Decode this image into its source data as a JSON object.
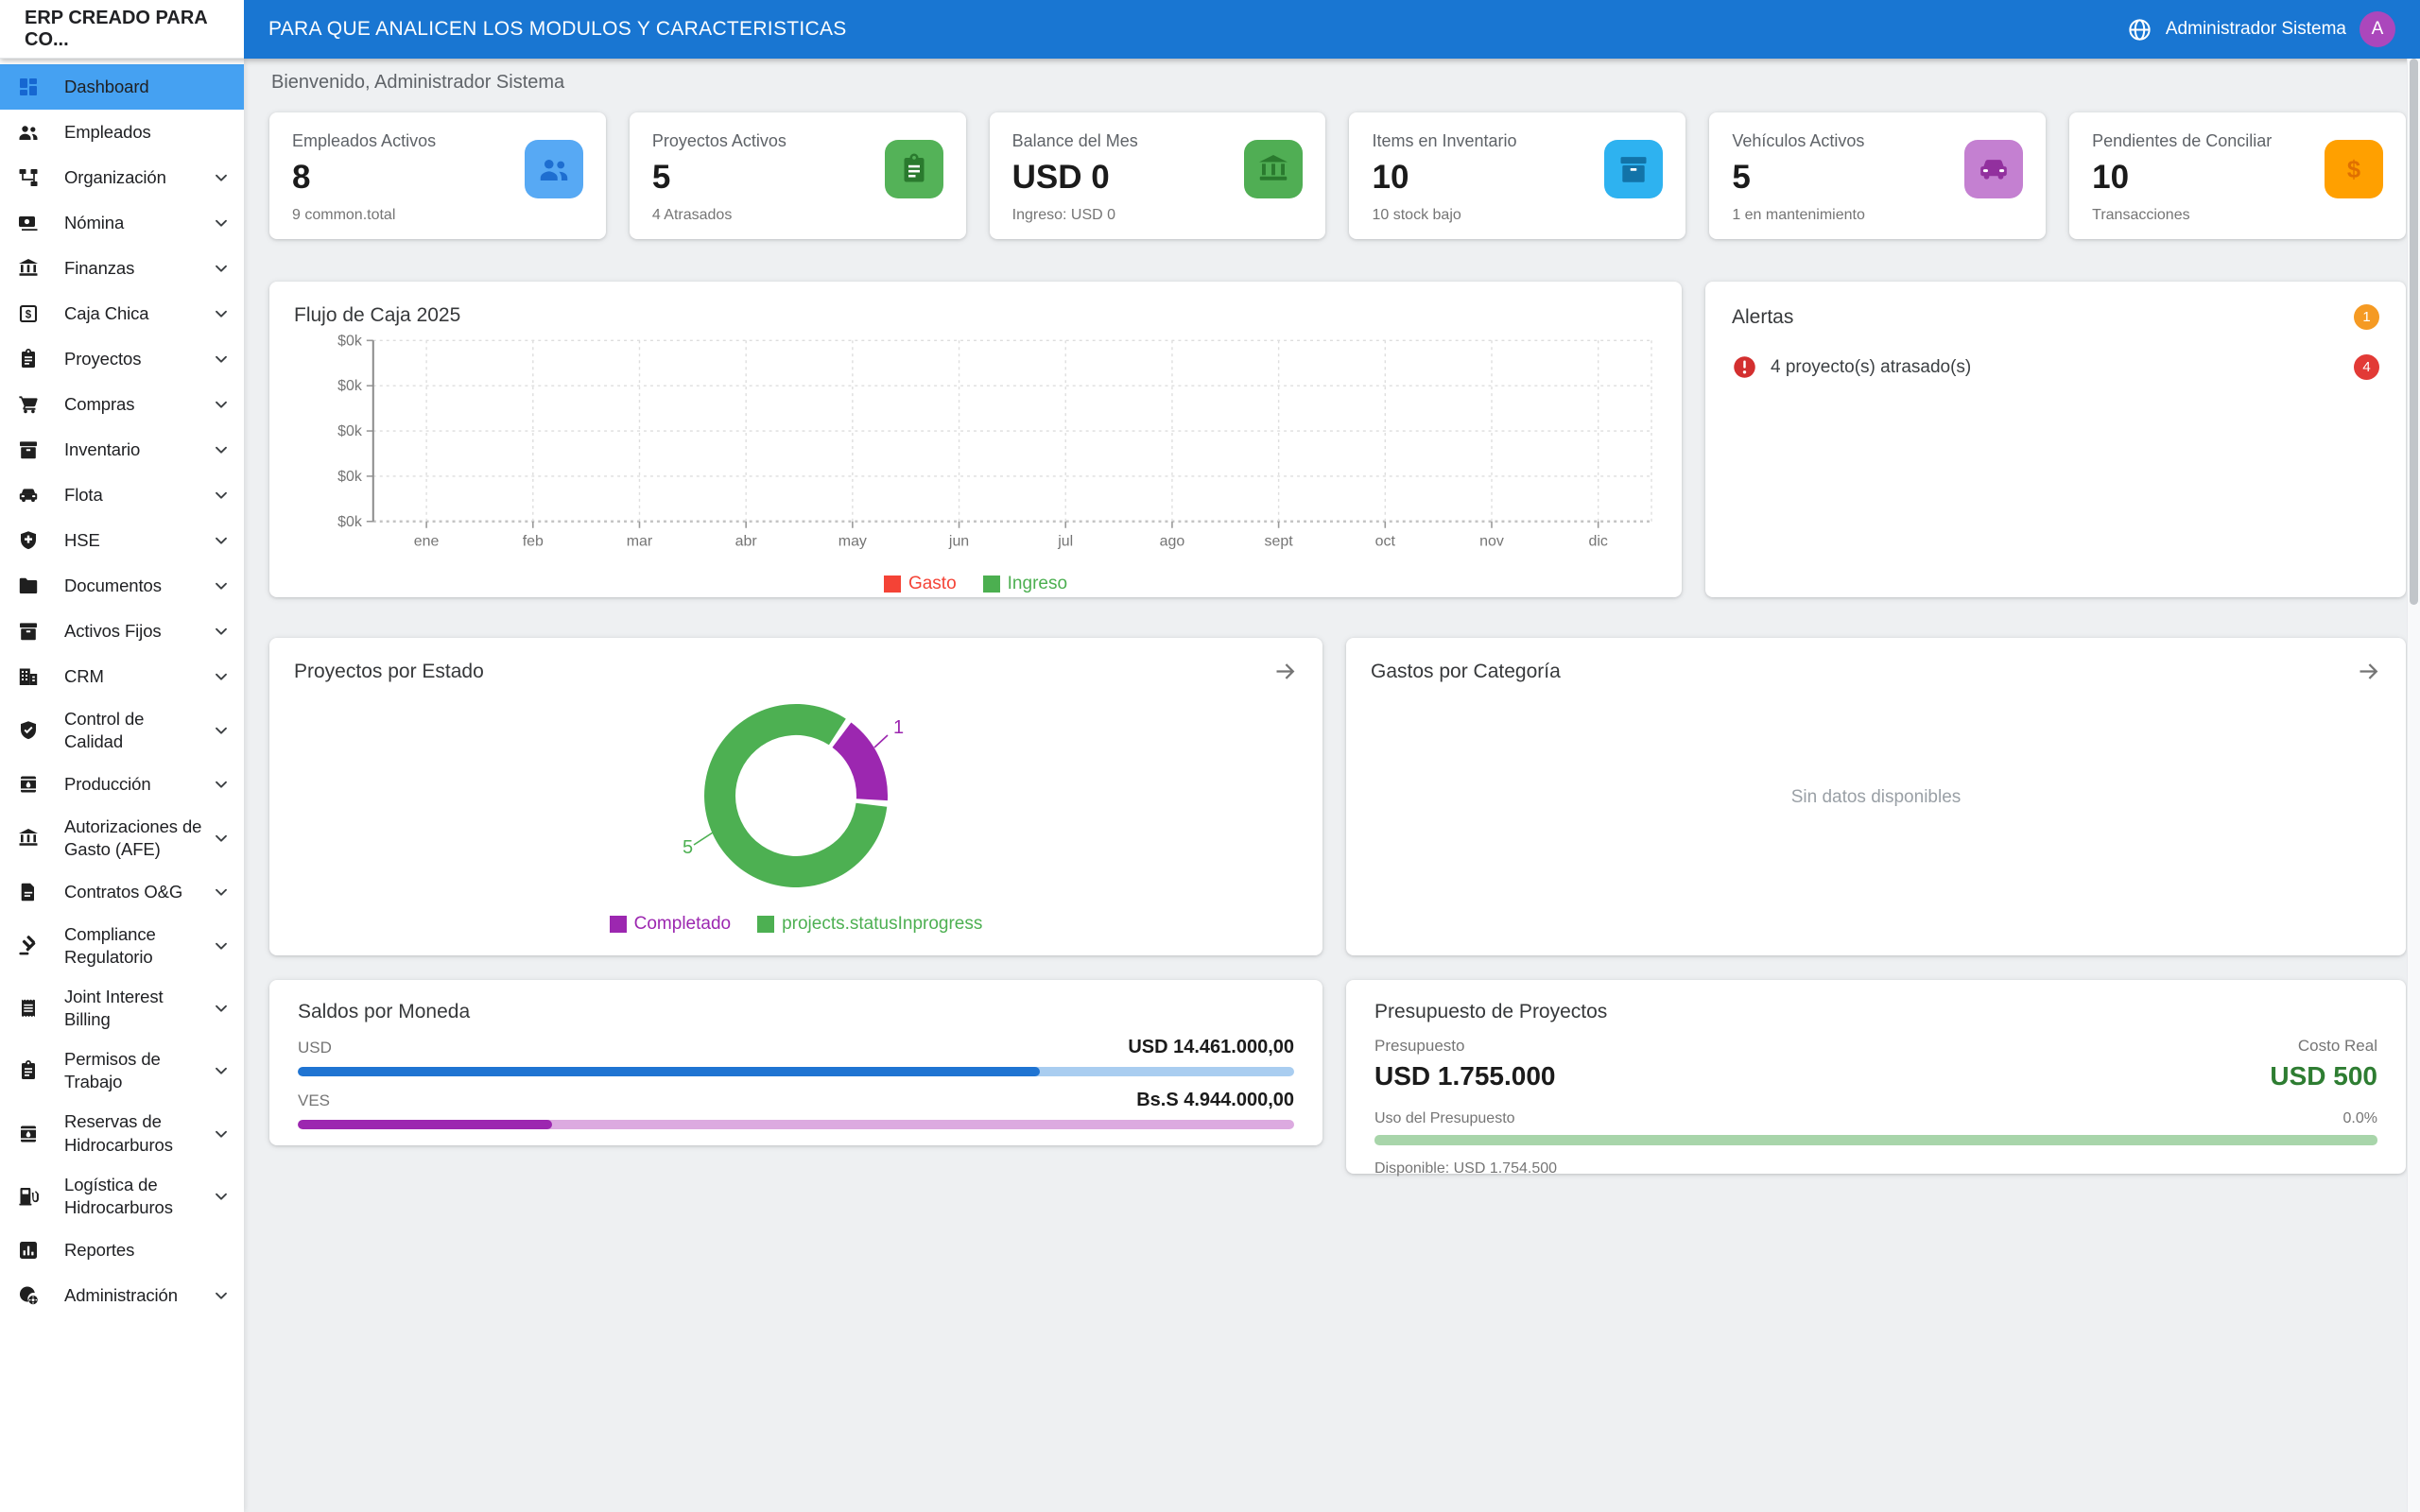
{
  "header": {
    "brand": "ERP CREADO PARA CO...",
    "title": "PARA QUE ANALICEN LOS MODULOS Y CARACTERISTICAS",
    "user": "Administrador Sistema",
    "avatar_letter": "A",
    "colors": {
      "bar": "#1976d2",
      "avatar": "#ab47bc"
    }
  },
  "welcome": "Bienvenido, Administrador Sistema",
  "sidebar": {
    "colors": {
      "active_bg": "#45a1f2",
      "active_icon": "#1667d1"
    },
    "items": [
      {
        "label": "Dashboard",
        "icon": "dashboard",
        "active": true,
        "expandable": false
      },
      {
        "label": "Empleados",
        "icon": "people",
        "expandable": false
      },
      {
        "label": "Organización",
        "icon": "tree",
        "expandable": true
      },
      {
        "label": "Nómina",
        "icon": "payments",
        "expandable": true
      },
      {
        "label": "Finanzas",
        "icon": "bank",
        "expandable": true
      },
      {
        "label": "Caja Chica",
        "icon": "cashbox",
        "expandable": true
      },
      {
        "label": "Proyectos",
        "icon": "clipboard",
        "expandable": true
      },
      {
        "label": "Compras",
        "icon": "cart",
        "expandable": true
      },
      {
        "label": "Inventario",
        "icon": "box",
        "expandable": true
      },
      {
        "label": "Flota",
        "icon": "car",
        "expandable": true
      },
      {
        "label": "HSE",
        "icon": "shield-plus",
        "expandable": true
      },
      {
        "label": "Documentos",
        "icon": "folder",
        "expandable": true
      },
      {
        "label": "Activos Fijos",
        "icon": "box",
        "expandable": true
      },
      {
        "label": "CRM",
        "icon": "building",
        "expandable": true
      },
      {
        "label": "Control de Calidad",
        "icon": "shield-check",
        "expandable": true
      },
      {
        "label": "Producción",
        "icon": "barrel",
        "expandable": true
      },
      {
        "label": "Autorizaciones de Gasto (AFE)",
        "icon": "bank",
        "expandable": true
      },
      {
        "label": "Contratos O&G",
        "icon": "document",
        "expandable": true
      },
      {
        "label": "Compliance Regulatorio",
        "icon": "gavel",
        "expandable": true
      },
      {
        "label": "Joint Interest Billing",
        "icon": "receipt",
        "expandable": true
      },
      {
        "label": "Permisos de Trabajo",
        "icon": "clipboard",
        "expandable": true
      },
      {
        "label": "Reservas de Hidrocarburos",
        "icon": "barrel",
        "expandable": true
      },
      {
        "label": "Logística de Hidrocarburos",
        "icon": "pump",
        "expandable": true
      },
      {
        "label": "Reportes",
        "icon": "analytics",
        "expandable": false
      },
      {
        "label": "Administración",
        "icon": "admin",
        "expandable": true
      }
    ]
  },
  "stats": [
    {
      "title": "Empleados Activos",
      "value": "8",
      "subtitle": "9 common.total",
      "icon": "people",
      "bg": "#57a9f4",
      "glyph": "#1e6ed0"
    },
    {
      "title": "Proyectos Activos",
      "value": "5",
      "subtitle": "4 Atrasados",
      "icon": "clipboard",
      "bg": "#54b258",
      "glyph": "#2a7a2e"
    },
    {
      "title": "Balance del Mes",
      "value": "USD 0",
      "subtitle": "Ingreso: USD 0",
      "icon": "bank",
      "bg": "#50ae54",
      "glyph": "#2a7a2e"
    },
    {
      "title": "Items en Inventario",
      "value": "10",
      "subtitle": "10 stock bajo",
      "icon": "box",
      "bg": "#2eb2f0",
      "glyph": "#1273a8"
    },
    {
      "title": "Vehículos Activos",
      "value": "5",
      "subtitle": "1 en mantenimiento",
      "icon": "car",
      "bg": "#c480d1",
      "glyph": "#92309e"
    },
    {
      "title": "Pendientes de Conciliar",
      "value": "10",
      "subtitle": "Transacciones",
      "icon": "money",
      "bg": "#ffa000",
      "glyph": "#e07000"
    }
  ],
  "cashflow": {
    "title": "Flujo de Caja 2025",
    "chart_data": {
      "type": "line",
      "x": [
        "ene",
        "feb",
        "mar",
        "abr",
        "may",
        "jun",
        "jul",
        "ago",
        "sept",
        "oct",
        "nov",
        "dic"
      ],
      "y_tick_labels": [
        "$0k",
        "$0k",
        "$0k",
        "$0k",
        "$0k"
      ],
      "ylim": [
        0,
        0
      ],
      "grid": true,
      "legend_position": "bottom",
      "series": [
        {
          "name": "Gasto",
          "color": "#f44336",
          "values": [
            0,
            0,
            0,
            0,
            0,
            0,
            0,
            0,
            0,
            0,
            0,
            0
          ]
        },
        {
          "name": "Ingreso",
          "color": "#4caf50",
          "values": [
            0,
            0,
            0,
            0,
            0,
            0,
            0,
            0,
            0,
            0,
            0,
            0
          ]
        }
      ]
    }
  },
  "alerts": {
    "title": "Alertas",
    "count_badge": "1",
    "item": {
      "text": "4 proyecto(s) atrasado(s)",
      "badge": "4"
    },
    "colors": {
      "count_bg": "#f59a23",
      "item_badge_bg": "#e23a36",
      "icon": "#d32f2f"
    }
  },
  "projects": {
    "title": "Proyectos por Estado",
    "chart_data": {
      "type": "doughnut",
      "labels": [
        "Completado",
        "projects.statusInprogress"
      ],
      "values": [
        1,
        5
      ],
      "colors": [
        "#9c27b0",
        "#4db052"
      ],
      "rotation_deg": 35,
      "legend_position": "bottom"
    }
  },
  "expenses": {
    "title": "Gastos por Categoría",
    "empty_text": "Sin datos disponibles"
  },
  "balances": {
    "title": "Saldos por Moneda",
    "rows": [
      {
        "code": "USD",
        "amount": "USD 14.461.000,00",
        "pct": 74.5,
        "fill": "#1f74d2",
        "track": "#a9cdf0"
      },
      {
        "code": "VES",
        "amount": "Bs.S 4.944.000,00",
        "pct": 25.5,
        "fill": "#9c27b0",
        "track": "#dcaae0"
      }
    ]
  },
  "budget": {
    "title": "Presupuesto de Proyectos",
    "left_label": "Presupuesto",
    "left_value": "USD 1.755.000",
    "right_label": "Costo Real",
    "right_value": "USD 500",
    "right_value_color": "#2e7d32",
    "usage_label": "Uso del Presupuesto",
    "usage_pct": "0.0%",
    "available": "Disponible: USD 1.754.500",
    "bar": {
      "pct": 0,
      "track": "#a8d5aa",
      "fill": "#4caf50"
    }
  }
}
